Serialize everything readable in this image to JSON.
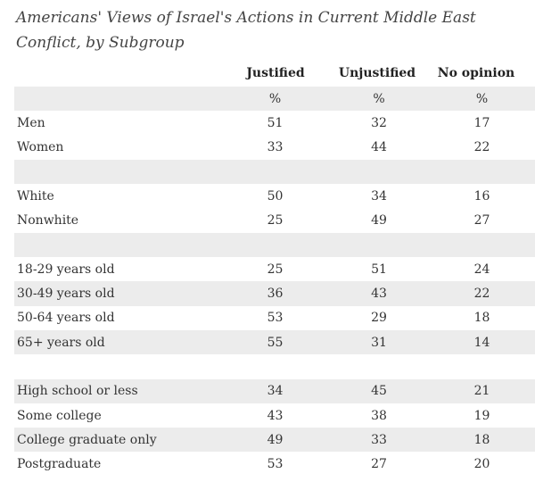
{
  "chart_data": {
    "type": "table",
    "title": "Americans' Views of Israel's Actions in Current Middle East Conflict, by Subgroup",
    "columns": [
      "Justified",
      "Unjustified",
      "No opinion"
    ],
    "unit_row": [
      "%",
      "%",
      "%"
    ],
    "rows": [
      {
        "label": "",
        "values": [
          "%",
          "%",
          "%"
        ],
        "shade": true,
        "kind": "unit"
      },
      {
        "label": "Men",
        "values": [
          "51",
          "32",
          "17"
        ],
        "shade": false
      },
      {
        "label": "Women",
        "values": [
          "33",
          "44",
          "22"
        ],
        "shade": false
      },
      {
        "label": "",
        "values": [
          "",
          "",
          ""
        ],
        "shade": true,
        "kind": "spacer"
      },
      {
        "label": "White",
        "values": [
          "50",
          "34",
          "16"
        ],
        "shade": false
      },
      {
        "label": "Nonwhite",
        "values": [
          "25",
          "49",
          "27"
        ],
        "shade": false
      },
      {
        "label": "",
        "values": [
          "",
          "",
          ""
        ],
        "shade": true,
        "kind": "spacer"
      },
      {
        "label": "18-29 years old",
        "values": [
          "25",
          "51",
          "24"
        ],
        "shade": false
      },
      {
        "label": "30-49 years old",
        "values": [
          "36",
          "43",
          "22"
        ],
        "shade": true
      },
      {
        "label": "50-64 years old",
        "values": [
          "53",
          "29",
          "18"
        ],
        "shade": false
      },
      {
        "label": "65+ years old",
        "values": [
          "55",
          "31",
          "14"
        ],
        "shade": true
      },
      {
        "label": "",
        "values": [
          "",
          "",
          ""
        ],
        "shade": false,
        "kind": "spacer"
      },
      {
        "label": "High school or less",
        "values": [
          "34",
          "45",
          "21"
        ],
        "shade": true
      },
      {
        "label": "Some college",
        "values": [
          "43",
          "38",
          "19"
        ],
        "shade": false
      },
      {
        "label": "College graduate only",
        "values": [
          "49",
          "33",
          "18"
        ],
        "shade": true
      },
      {
        "label": "Postgraduate",
        "values": [
          "53",
          "27",
          "20"
        ],
        "shade": false
      }
    ]
  }
}
